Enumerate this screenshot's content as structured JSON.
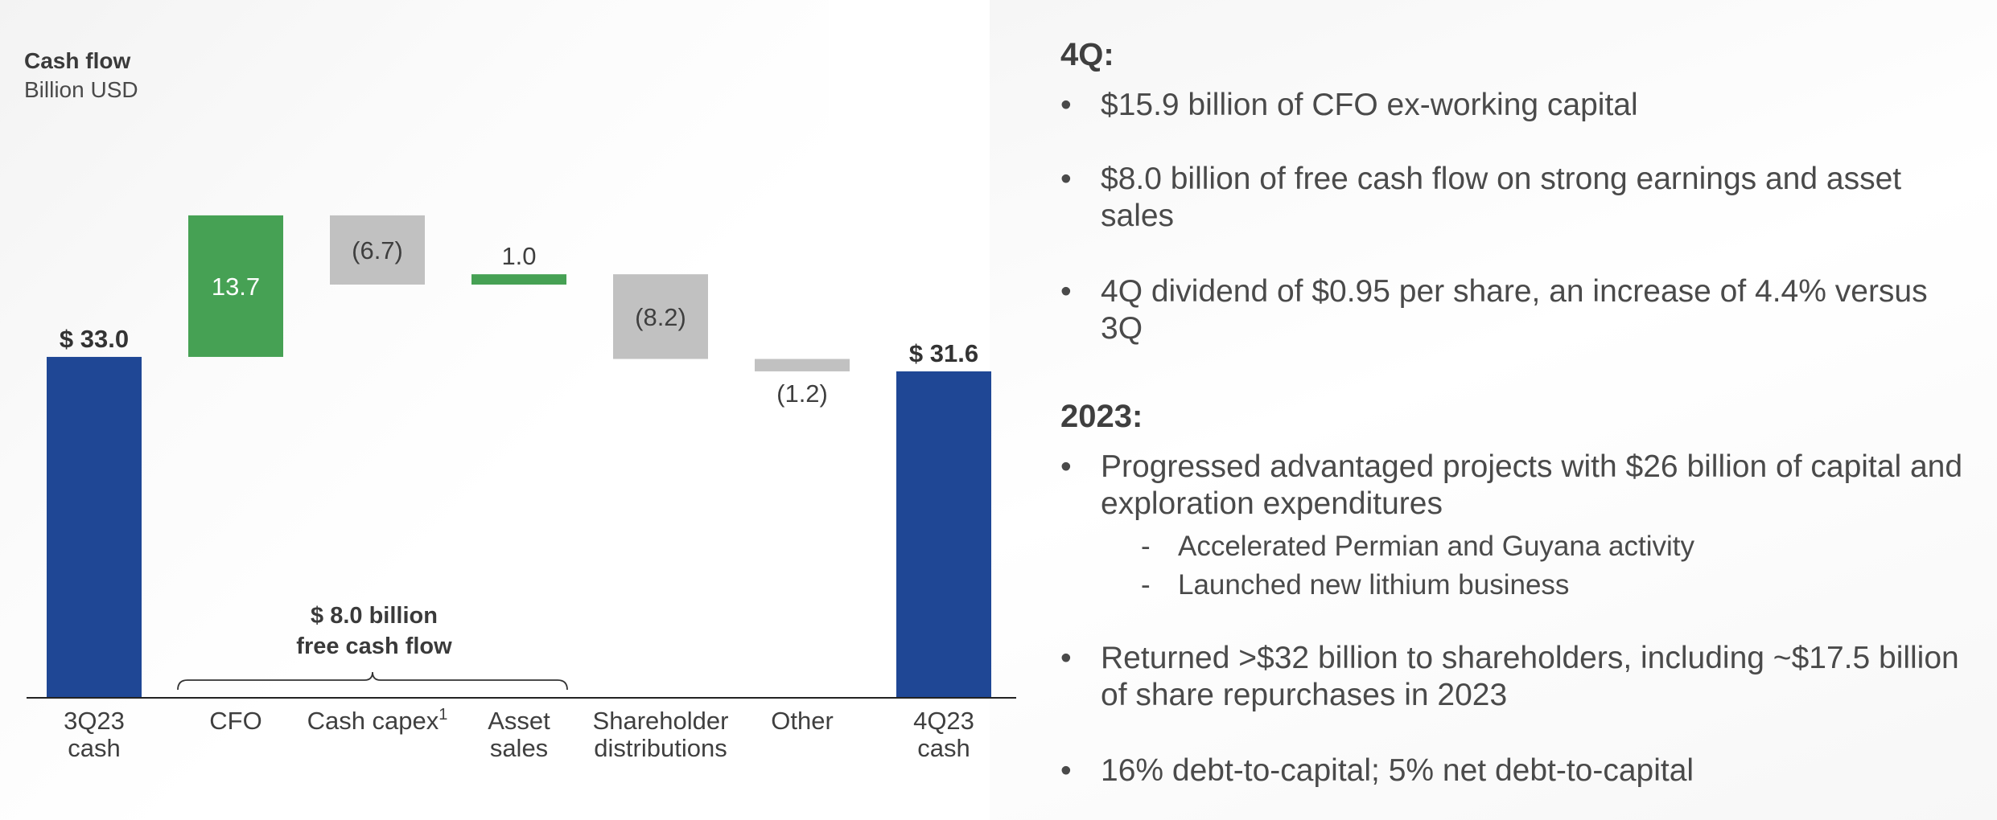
{
  "chart_data": {
    "type": "bar",
    "subtype": "waterfall",
    "title": "Cash flow",
    "subtitle": "Billion USD",
    "categories": [
      "3Q23\ncash",
      "CFO",
      "Cash capex",
      "Asset\nsales",
      "Shareholder\ndistributions",
      "Other",
      "4Q23\ncash"
    ],
    "category_superscripts": [
      "",
      "",
      "1",
      "",
      "",
      "",
      ""
    ],
    "values": [
      33.0,
      13.7,
      -6.7,
      1.0,
      -8.2,
      -1.2,
      31.6
    ],
    "bar_kinds": [
      "total",
      "increase",
      "decrease",
      "increase",
      "decrease",
      "decrease",
      "total"
    ],
    "value_labels": [
      "$ 33.0",
      "13.7",
      "(6.7)",
      "1.0",
      "(8.2)",
      "(1.2)",
      "$ 31.6"
    ],
    "colors": {
      "total": "#1f4795",
      "increase": "#46a154",
      "decrease": "#c1c1c1"
    },
    "annotation": {
      "lines": [
        "$ 8.0 billion",
        "free cash flow"
      ],
      "spans": [
        "CFO",
        "Cash capex",
        "Asset sales"
      ]
    },
    "ylim": [
      0,
      55
    ],
    "grid": false,
    "legend": "none"
  },
  "summary": {
    "q4": {
      "heading": "4Q:",
      "bullets": [
        "$15.9 billion of CFO ex-working capital",
        "$8.0 billion of free cash flow on strong earnings and asset sales",
        "4Q dividend of $0.95 per share, an increase of 4.4% versus 3Q"
      ]
    },
    "y2023": {
      "heading": "2023:",
      "bullets": [
        {
          "text": "Progressed advantaged projects with $26 billion of capital and exploration expenditures",
          "sub": [
            "Accelerated Permian and Guyana activity",
            "Launched new lithium business"
          ]
        },
        {
          "text": "Returned >$32 billion to shareholders, including ~$17.5 billion of share repurchases in 2023"
        },
        {
          "text": "16% debt-to-capital; 5% net debt-to-capital"
        }
      ]
    },
    "bullet_char": "•",
    "dash_char": "-"
  }
}
